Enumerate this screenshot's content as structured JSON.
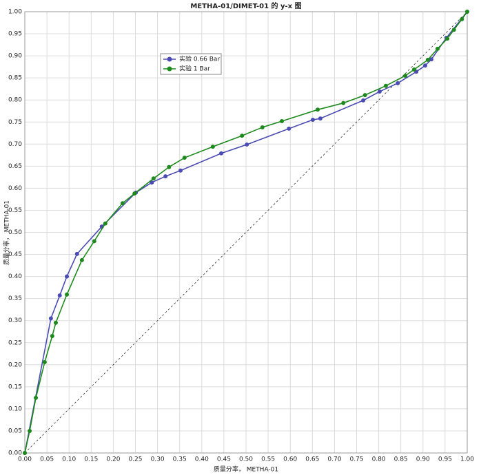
{
  "chart_data": {
    "type": "line",
    "title": "METHA-01/DIMET-01 的 y-x 图",
    "x_label": "质量分率， METHA-01",
    "y_label": "质量分率， METHA-01",
    "xlim": [
      0,
      1
    ],
    "ylim": [
      0,
      1
    ],
    "xticks": [
      {
        "value": 0,
        "label": "0.00"
      },
      {
        "value": 0.05,
        "label": "0.05"
      },
      {
        "value": 0.1,
        "label": "0.10"
      },
      {
        "value": 0.15,
        "label": "0.15"
      },
      {
        "value": 0.2,
        "label": "0.20"
      },
      {
        "value": 0.25,
        "label": "0.25"
      },
      {
        "value": 0.3,
        "label": "0.30"
      },
      {
        "value": 0.35,
        "label": "0.35"
      },
      {
        "value": 0.4,
        "label": "0.40"
      },
      {
        "value": 0.45,
        "label": "0.45"
      },
      {
        "value": 0.5,
        "label": "0.50"
      },
      {
        "value": 0.55,
        "label": "0.55"
      },
      {
        "value": 0.6,
        "label": "0.60"
      },
      {
        "value": 0.65,
        "label": "0.65"
      },
      {
        "value": 0.7,
        "label": "0.70"
      },
      {
        "value": 0.75,
        "label": "0.75"
      },
      {
        "value": 0.8,
        "label": "0.80"
      },
      {
        "value": 0.85,
        "label": "0.85"
      },
      {
        "value": 0.9,
        "label": "0.90"
      },
      {
        "value": 0.95,
        "label": "0.95"
      },
      {
        "value": 1,
        "label": "1.00"
      }
    ],
    "yticks": [
      {
        "value": 0,
        "label": "0.00"
      },
      {
        "value": 0.05,
        "label": "0.05"
      },
      {
        "value": 0.1,
        "label": "0.10"
      },
      {
        "value": 0.15,
        "label": "0.15"
      },
      {
        "value": 0.2,
        "label": "0.20"
      },
      {
        "value": 0.25,
        "label": "0.25"
      },
      {
        "value": 0.3,
        "label": "0.30"
      },
      {
        "value": 0.35,
        "label": "0.35"
      },
      {
        "value": 0.4,
        "label": "0.40"
      },
      {
        "value": 0.45,
        "label": "0.45"
      },
      {
        "value": 0.5,
        "label": "0.50"
      },
      {
        "value": 0.55,
        "label": "0.55"
      },
      {
        "value": 0.6,
        "label": "0.60"
      },
      {
        "value": 0.65,
        "label": "0.65"
      },
      {
        "value": 0.7,
        "label": "0.70"
      },
      {
        "value": 0.75,
        "label": "0.75"
      },
      {
        "value": 0.8,
        "label": "0.80"
      },
      {
        "value": 0.85,
        "label": "0.85"
      },
      {
        "value": 0.9,
        "label": "0.90"
      },
      {
        "value": 0.95,
        "label": "0.95"
      },
      {
        "value": 1,
        "label": "1.00"
      }
    ],
    "grid": true,
    "diagonal": true,
    "series": [
      {
        "name": "实验 0.66 Bar",
        "color": "#4b4bb4",
        "x": [
          0,
          0.059,
          0.079,
          0.095,
          0.118,
          0.174,
          0.251,
          0.287,
          0.318,
          0.352,
          0.444,
          0.502,
          0.597,
          0.651,
          0.668,
          0.765,
          0.802,
          0.843,
          0.885,
          0.905,
          0.919,
          0.953,
          1
        ],
        "values": [
          0,
          0.305,
          0.357,
          0.4,
          0.451,
          0.513,
          0.59,
          0.613,
          0.627,
          0.64,
          0.679,
          0.699,
          0.735,
          0.755,
          0.758,
          0.799,
          0.819,
          0.838,
          0.864,
          0.878,
          0.892,
          0.941,
          1
        ]
      },
      {
        "name": "实验 1 Bar",
        "color": "#1e8a1e",
        "x": [
          0,
          0.011,
          0.025,
          0.045,
          0.062,
          0.07,
          0.095,
          0.129,
          0.157,
          0.182,
          0.221,
          0.248,
          0.291,
          0.326,
          0.361,
          0.425,
          0.491,
          0.537,
          0.581,
          0.662,
          0.72,
          0.769,
          0.816,
          0.86,
          0.88,
          0.911,
          0.933,
          0.955,
          0.97,
          0.988,
          1
        ],
        "values": [
          0,
          0.05,
          0.125,
          0.206,
          0.265,
          0.295,
          0.359,
          0.437,
          0.48,
          0.52,
          0.566,
          0.588,
          0.622,
          0.648,
          0.669,
          0.694,
          0.719,
          0.738,
          0.752,
          0.778,
          0.793,
          0.811,
          0.832,
          0.855,
          0.869,
          0.891,
          0.916,
          0.939,
          0.959,
          0.983,
          1
        ]
      }
    ]
  }
}
